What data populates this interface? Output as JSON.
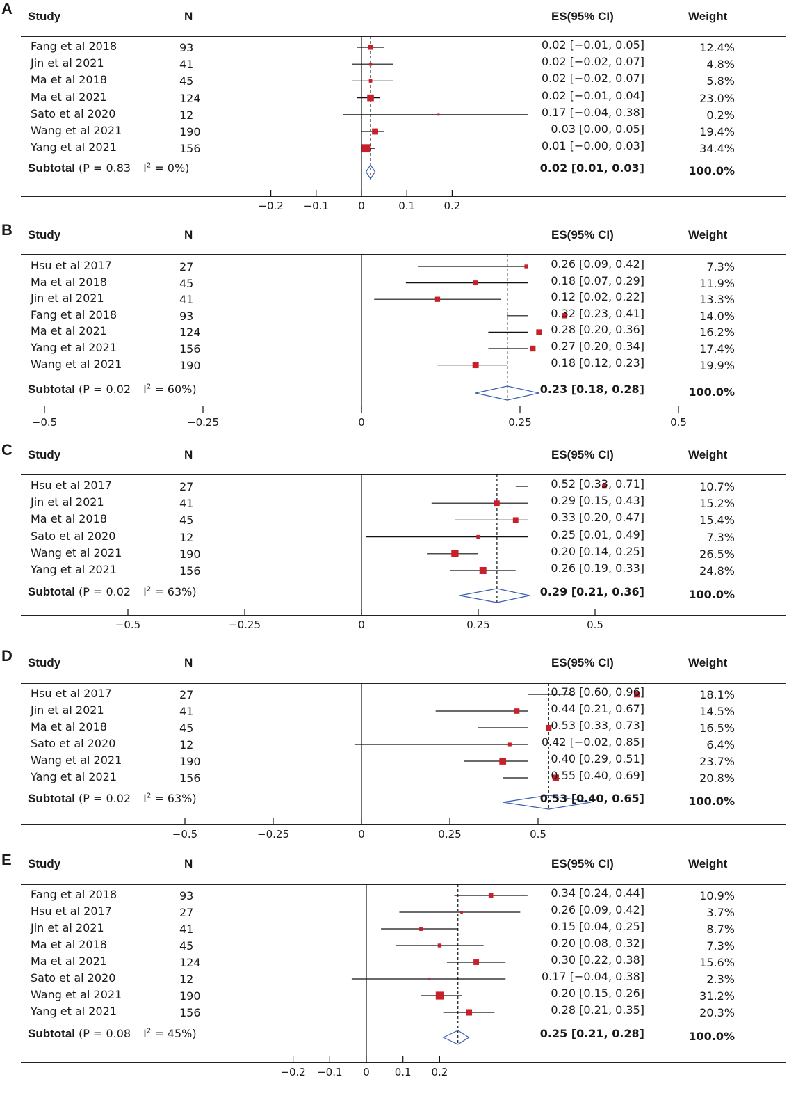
{
  "headers": {
    "study": "Study",
    "n": "N",
    "es": "ES(95% CI)",
    "weight": "Weight"
  },
  "colors": {
    "square": "#c8202a",
    "diamond": "#3a5fb0",
    "line": "#111111"
  },
  "chart_data": [
    {
      "type": "forest",
      "panel": "A",
      "xlim": [
        -0.2,
        0.2
      ],
      "ticks": [
        -0.2,
        -0.1,
        0,
        0.1,
        0.2
      ],
      "tick_labels": [
        "−0.2",
        "−0.1",
        "0",
        "0.1",
        "0.2"
      ],
      "studies": [
        {
          "study": "Fang et al 2018",
          "n": "93",
          "es": 0.02,
          "lo": -0.01,
          "hi": 0.05,
          "ci": "0.02 [−0.01, 0.05]",
          "weight": "12.4%",
          "w": 12.4
        },
        {
          "study": "Jin et al 2021",
          "n": "41",
          "es": 0.02,
          "lo": -0.02,
          "hi": 0.07,
          "ci": "0.02 [−0.02, 0.07]",
          "weight": "4.8%",
          "w": 4.8
        },
        {
          "study": "Ma et al 2018",
          "n": "45",
          "es": 0.02,
          "lo": -0.02,
          "hi": 0.07,
          "ci": "0.02 [−0.02, 0.07]",
          "weight": "5.8%",
          "w": 5.8
        },
        {
          "study": "Ma et al 2021",
          "n": "124",
          "es": 0.02,
          "lo": -0.01,
          "hi": 0.04,
          "ci": "0.02 [−0.01, 0.04]",
          "weight": "23.0%",
          "w": 23.0
        },
        {
          "study": "Sato et al 2020",
          "n": "12",
          "es": 0.17,
          "lo": -0.04,
          "hi": 0.38,
          "ci": "0.17 [−0.04, 0.38]",
          "weight": "0.2%",
          "w": 0.2
        },
        {
          "study": "Wang et al 2021",
          "n": "190",
          "es": 0.03,
          "lo": 0.0,
          "hi": 0.05,
          "ci": "0.03 [0.00, 0.05]",
          "weight": "19.4%",
          "w": 19.4
        },
        {
          "study": "Yang et al 2021",
          "n": "156",
          "es": 0.01,
          "lo": -0.0,
          "hi": 0.03,
          "ci": "0.01 [−0.00, 0.03]",
          "weight": "34.4%",
          "w": 34.4
        }
      ],
      "subtotal": {
        "label": "Subtotal",
        "stats_p": "(P = 0.83",
        "stats_i": "I",
        "stats_i_sup": "2",
        "stats_i_val": " = 0%)",
        "es": 0.02,
        "lo": 0.01,
        "hi": 0.03,
        "ci": "0.02 [0.01, 0.03]",
        "weight": "100.0%"
      }
    },
    {
      "type": "forest",
      "panel": "B",
      "xlim": [
        -0.5,
        0.5
      ],
      "ticks": [
        -0.5,
        -0.25,
        0,
        0.25,
        0.5
      ],
      "tick_labels": [
        "−0.5",
        "−0.25",
        "0",
        "0.25",
        "0.5"
      ],
      "studies": [
        {
          "study": "Hsu et al 2017",
          "n": "27",
          "es": 0.26,
          "lo": 0.09,
          "hi": 0.42,
          "ci": "0.26 [0.09, 0.42]",
          "weight": "7.3%",
          "w": 7.3
        },
        {
          "study": "Ma et al 2018",
          "n": "45",
          "es": 0.18,
          "lo": 0.07,
          "hi": 0.29,
          "ci": "0.18 [0.07, 0.29]",
          "weight": "11.9%",
          "w": 11.9
        },
        {
          "study": "Jin et al 2021",
          "n": "41",
          "es": 0.12,
          "lo": 0.02,
          "hi": 0.22,
          "ci": "0.12 [0.02, 0.22]",
          "weight": "13.3%",
          "w": 13.3
        },
        {
          "study": "Fang et al 2018",
          "n": "93",
          "es": 0.32,
          "lo": 0.23,
          "hi": 0.41,
          "ci": "0.32 [0.23, 0.41]",
          "weight": "14.0%",
          "w": 14.0
        },
        {
          "study": "Ma et al 2021",
          "n": "124",
          "es": 0.28,
          "lo": 0.2,
          "hi": 0.36,
          "ci": "0.28 [0.20, 0.36]",
          "weight": "16.2%",
          "w": 16.2
        },
        {
          "study": "Yang et al 2021",
          "n": "156",
          "es": 0.27,
          "lo": 0.2,
          "hi": 0.34,
          "ci": "0.27 [0.20, 0.34]",
          "weight": "17.4%",
          "w": 17.4
        },
        {
          "study": "Wang et al 2021",
          "n": "190",
          "es": 0.18,
          "lo": 0.12,
          "hi": 0.23,
          "ci": "0.18 [0.12, 0.23]",
          "weight": "19.9%",
          "w": 19.9
        }
      ],
      "subtotal": {
        "label": "Subtotal",
        "stats_p": "(P = 0.02",
        "stats_i": "I",
        "stats_i_sup": "2",
        "stats_i_val": " = 60%)",
        "es": 0.23,
        "lo": 0.18,
        "hi": 0.28,
        "ci": "0.23 [0.18, 0.28]",
        "weight": "100.0%"
      }
    },
    {
      "type": "forest",
      "panel": "C",
      "xlim": [
        -0.5,
        0.5
      ],
      "ticks": [
        -0.5,
        -0.25,
        0,
        0.25,
        0.5
      ],
      "tick_labels": [
        "−0.5",
        "−0.25",
        "0",
        "0.25",
        "0.5"
      ],
      "studies": [
        {
          "study": "Hsu et al 2017",
          "n": "27",
          "es": 0.52,
          "lo": 0.33,
          "hi": 0.71,
          "ci": "0.52 [0.33, 0.71]",
          "weight": "10.7%",
          "w": 10.7
        },
        {
          "study": "Jin et al 2021",
          "n": "41",
          "es": 0.29,
          "lo": 0.15,
          "hi": 0.43,
          "ci": "0.29 [0.15, 0.43]",
          "weight": "15.2%",
          "w": 15.2
        },
        {
          "study": "Ma et al 2018",
          "n": "45",
          "es": 0.33,
          "lo": 0.2,
          "hi": 0.47,
          "ci": "0.33 [0.20, 0.47]",
          "weight": "15.4%",
          "w": 15.4
        },
        {
          "study": "Sato et al 2020",
          "n": "12",
          "es": 0.25,
          "lo": 0.01,
          "hi": 0.49,
          "ci": "0.25 [0.01, 0.49]",
          "weight": "7.3%",
          "w": 7.3
        },
        {
          "study": "Wang et al 2021",
          "n": "190",
          "es": 0.2,
          "lo": 0.14,
          "hi": 0.25,
          "ci": "0.20 [0.14, 0.25]",
          "weight": "26.5%",
          "w": 26.5
        },
        {
          "study": "Yang et al 2021",
          "n": "156",
          "es": 0.26,
          "lo": 0.19,
          "hi": 0.33,
          "ci": "0.26 [0.19, 0.33]",
          "weight": "24.8%",
          "w": 24.8
        }
      ],
      "subtotal": {
        "label": "Subtotal",
        "stats_p": "(P = 0.02",
        "stats_i": "I",
        "stats_i_sup": "2",
        "stats_i_val": " = 63%)",
        "es": 0.29,
        "lo": 0.21,
        "hi": 0.36,
        "ci": "0.29 [0.21, 0.36]",
        "weight": "100.0%"
      }
    },
    {
      "type": "forest",
      "panel": "D",
      "xlim": [
        -0.5,
        0.5
      ],
      "ticks": [
        -0.5,
        -0.25,
        0,
        0.25,
        0.5
      ],
      "tick_labels": [
        "−0.5",
        "−0.25",
        "0",
        "0.25",
        "0.5"
      ],
      "studies": [
        {
          "study": "Hsu et al 2017",
          "n": "27",
          "es": 0.78,
          "lo": 0.6,
          "hi": 0.96,
          "ci": "0.78 [0.60, 0.96]",
          "weight": "18.1%",
          "w": 18.1
        },
        {
          "study": "Jin et al 2021",
          "n": "41",
          "es": 0.44,
          "lo": 0.21,
          "hi": 0.67,
          "ci": "0.44 [0.21, 0.67]",
          "weight": "14.5%",
          "w": 14.5
        },
        {
          "study": "Ma et al 2018",
          "n": "45",
          "es": 0.53,
          "lo": 0.33,
          "hi": 0.73,
          "ci": "0.53 [0.33, 0.73]",
          "weight": "16.5%",
          "w": 16.5
        },
        {
          "study": "Sato et al 2020",
          "n": "12",
          "es": 0.42,
          "lo": -0.02,
          "hi": 0.85,
          "ci": "0.42 [−0.02, 0.85]",
          "weight": "6.4%",
          "w": 6.4
        },
        {
          "study": "Wang et al 2021",
          "n": "190",
          "es": 0.4,
          "lo": 0.29,
          "hi": 0.51,
          "ci": "0.40 [0.29, 0.51]",
          "weight": "23.7%",
          "w": 23.7
        },
        {
          "study": "Yang et al 2021",
          "n": "156",
          "es": 0.55,
          "lo": 0.4,
          "hi": 0.69,
          "ci": "0.55 [0.40, 0.69]",
          "weight": "20.8%",
          "w": 20.8
        }
      ],
      "subtotal": {
        "label": "Subtotal",
        "stats_p": "(P = 0.02",
        "stats_i": "I",
        "stats_i_sup": "2",
        "stats_i_val": " = 63%)",
        "es": 0.53,
        "lo": 0.4,
        "hi": 0.65,
        "ci": "0.53 [0.40, 0.65]",
        "weight": "100.0%"
      }
    },
    {
      "type": "forest",
      "panel": "E",
      "xlim": [
        -0.2,
        0.2
      ],
      "ticks": [
        -0.2,
        -0.1,
        0,
        0.1,
        0.2
      ],
      "tick_labels": [
        "−0.2",
        "−0.1",
        "0",
        "0.1",
        "0.2"
      ],
      "studies": [
        {
          "study": "Fang et al 2018",
          "n": "93",
          "es": 0.34,
          "lo": 0.24,
          "hi": 0.44,
          "ci": "0.34 [0.24, 0.44]",
          "weight": "10.9%",
          "w": 10.9
        },
        {
          "study": "Hsu et al 2017",
          "n": "27",
          "es": 0.26,
          "lo": 0.09,
          "hi": 0.42,
          "ci": "0.26 [0.09, 0.42]",
          "weight": "3.7%",
          "w": 3.7
        },
        {
          "study": "Jin et al 2021",
          "n": "41",
          "es": 0.15,
          "lo": 0.04,
          "hi": 0.25,
          "ci": "0.15 [0.04, 0.25]",
          "weight": "8.7%",
          "w": 8.7
        },
        {
          "study": "Ma et al 2018",
          "n": "45",
          "es": 0.2,
          "lo": 0.08,
          "hi": 0.32,
          "ci": "0.20 [0.08, 0.32]",
          "weight": "7.3%",
          "w": 7.3
        },
        {
          "study": "Ma et al 2021",
          "n": "124",
          "es": 0.3,
          "lo": 0.22,
          "hi": 0.38,
          "ci": "0.30 [0.22, 0.38]",
          "weight": "15.6%",
          "w": 15.6
        },
        {
          "study": "Sato et al 2020",
          "n": "12",
          "es": 0.17,
          "lo": -0.04,
          "hi": 0.38,
          "ci": "0.17 [−0.04, 0.38]",
          "weight": "2.3%",
          "w": 2.3
        },
        {
          "study": "Wang et al 2021",
          "n": "190",
          "es": 0.2,
          "lo": 0.15,
          "hi": 0.26,
          "ci": "0.20 [0.15, 0.26]",
          "weight": "31.2%",
          "w": 31.2
        },
        {
          "study": "Yang et al 2021",
          "n": "156",
          "es": 0.28,
          "lo": 0.21,
          "hi": 0.35,
          "ci": "0.28 [0.21, 0.35]",
          "weight": "20.3%",
          "w": 20.3
        }
      ],
      "subtotal": {
        "label": "Subtotal",
        "stats_p": "(P = 0.08",
        "stats_i": "I",
        "stats_i_sup": "2",
        "stats_i_val": " = 45%)",
        "es": 0.25,
        "lo": 0.21,
        "hi": 0.28,
        "ci": "0.25 [0.21, 0.28]",
        "weight": "100.0%"
      }
    }
  ]
}
